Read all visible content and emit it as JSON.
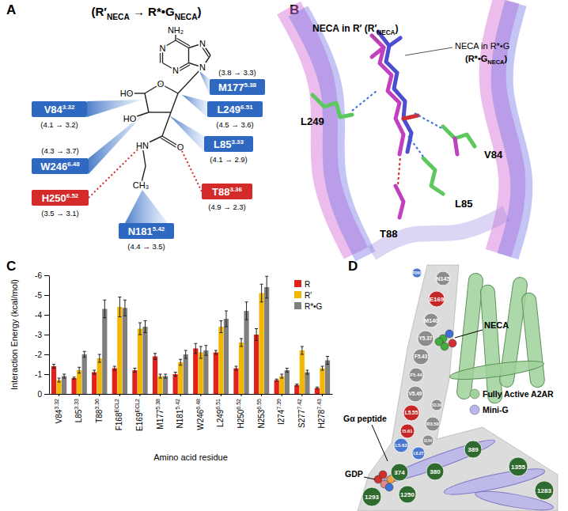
{
  "panel_labels": [
    "A",
    "B",
    "C",
    "D"
  ],
  "panel_a": {
    "title": [
      "(R′",
      "NECA",
      " → R*•G",
      "NECA",
      ")"
    ],
    "atoms": [
      "NH₂",
      "N",
      "N",
      "N",
      "N",
      "O",
      "HO",
      "HO",
      "O",
      "HN",
      "CH₃"
    ],
    "residues": [
      {
        "name": "V84",
        "superscript": "3.32",
        "distance": "(4.1 → 3.2)",
        "color": "#2f68c0"
      },
      {
        "name": "M177",
        "superscript": "5.38",
        "distance": "(3.8 → 3.3)",
        "color": "#2f68c0"
      },
      {
        "name": "L249",
        "superscript": "6.51",
        "distance": "(4.5 → 3.6)",
        "color": "#2f68c0"
      },
      {
        "name": "W246",
        "superscript": "6.48",
        "distance": "(4.3 → 3.7)",
        "color": "#2f68c0"
      },
      {
        "name": "L85",
        "superscript": "3.33",
        "distance": "(4.1 → 2.9)",
        "color": "#2f68c0"
      },
      {
        "name": "H250",
        "superscript": "6.52",
        "distance": "(3.5 → 3.1)",
        "color": "#d42a2a"
      },
      {
        "name": "T88",
        "superscript": "3.36",
        "distance": "(4.9 → 2.3)",
        "color": "#d42a2a"
      },
      {
        "name": "N181",
        "superscript": "5.42",
        "distance": "(4.4 → 3.5)",
        "color": "#2f68c0"
      }
    ]
  },
  "panel_b": {
    "label_r": [
      "NECA in R′ (R′",
      "NECA",
      ")"
    ],
    "label_g_line1": "NECA in R*•G",
    "label_g_line2": [
      "(R*•G",
      "NECA",
      ")"
    ],
    "residues": [
      "L249",
      "V84",
      "L85",
      "T88"
    ]
  },
  "chart_data": {
    "type": "bar",
    "categories": [
      "V84",
      "L85",
      "T88",
      "F168",
      "E169",
      "M177",
      "N181",
      "W246",
      "L249",
      "H250",
      "N253",
      "I274",
      "S277",
      "H278"
    ],
    "superscripts": [
      "3.32",
      "3.33",
      "3.36",
      "ECL2",
      "ECL2",
      "5.38",
      "5.42",
      "6.48",
      "6.51",
      "6.52",
      "6.55",
      "7.39",
      "7.42",
      "7.43"
    ],
    "series": [
      {
        "name": "R",
        "color": "#e3201b",
        "values": [
          -1.4,
          -0.8,
          -1.1,
          -1.3,
          -1.2,
          -1.9,
          -1.0,
          -2.3,
          -2.1,
          -1.3,
          -3.0,
          -0.7,
          -0.45,
          -0.3
        ],
        "errors": [
          0.1,
          0.05,
          0.1,
          0.1,
          0.1,
          0.15,
          0.1,
          0.25,
          0.1,
          0.1,
          0.3,
          0.05,
          0.05,
          0.05
        ]
      },
      {
        "name": "R′",
        "color": "#f2b705",
        "values": [
          -0.7,
          -1.2,
          -1.8,
          -4.4,
          -3.3,
          -0.9,
          -1.6,
          -2.1,
          -3.4,
          -2.6,
          -5.1,
          -0.9,
          -2.2,
          -1.3
        ],
        "errors": [
          0.1,
          0.15,
          0.2,
          0.5,
          0.3,
          0.1,
          0.15,
          0.3,
          0.3,
          0.2,
          0.45,
          0.1,
          0.2,
          0.1
        ]
      },
      {
        "name": "R*•G",
        "color": "#7f7f7f",
        "values": [
          -0.9,
          -2.0,
          -4.3,
          -4.35,
          -3.4,
          -0.9,
          -2.0,
          -2.2,
          -3.8,
          -4.2,
          -5.4,
          -1.2,
          -1.1,
          -1.7
        ],
        "errors": [
          0.1,
          0.15,
          0.45,
          0.4,
          0.3,
          0.1,
          0.2,
          0.25,
          0.4,
          0.45,
          0.55,
          0.1,
          0.1,
          0.2
        ]
      }
    ],
    "ylim": [
      0,
      -6
    ],
    "yticks": [
      0,
      -1,
      -2,
      -3,
      -4,
      -5,
      -6
    ],
    "y_label": "Interaction Energy (kcal/mol)",
    "x_label": "Amino acid residue",
    "legend": "upper right",
    "grid": false
  },
  "panel_d": {
    "residues": [
      {
        "label": "P260",
        "color": "#4b79cf"
      },
      {
        "label": "N145",
        "color": "#8c8c8c"
      },
      {
        "label": "E169",
        "color": "#c62828"
      },
      {
        "label": "M140",
        "color": "#8c8c8c"
      },
      {
        "label": "Y5.37",
        "color": "#8c8c8c"
      },
      {
        "label": "F5.43",
        "color": "#8c8c8c"
      },
      {
        "label": "F5.44",
        "color": "#8c8c8c"
      },
      {
        "label": "V5.49",
        "color": "#8c8c8c"
      },
      {
        "label": "S3.39",
        "color": "#8c8c8c"
      },
      {
        "label": "L5.55",
        "color": "#c62828"
      },
      {
        "label": "R3.50",
        "color": "#8c8c8c"
      },
      {
        "label": "I5.61",
        "color": "#c62828"
      },
      {
        "label": "I3.54",
        "color": "#8c8c8c"
      },
      {
        "label": "L5.63",
        "color": "#4b79cf"
      },
      {
        "label": "L6.27",
        "color": "#4b79cf"
      },
      {
        "label": "374",
        "color": "#2f6a2f"
      },
      {
        "label": "380",
        "color": "#2f6a2f"
      },
      {
        "label": "389",
        "color": "#2f6a2f"
      },
      {
        "label": "1355",
        "color": "#2f6a2f"
      },
      {
        "label": "1283",
        "color": "#2f6a2f"
      },
      {
        "label": "1293",
        "color": "#2f6a2f"
      },
      {
        "label": "1250",
        "color": "#2f6a2f"
      }
    ],
    "labels": [
      "NECA",
      "Gα peptide",
      "GDP"
    ],
    "legend": [
      {
        "name": "Fully Active A2AR",
        "color": "#9fd19a"
      },
      {
        "name": "Mini-G",
        "color": "#b9b4ea"
      }
    ]
  }
}
